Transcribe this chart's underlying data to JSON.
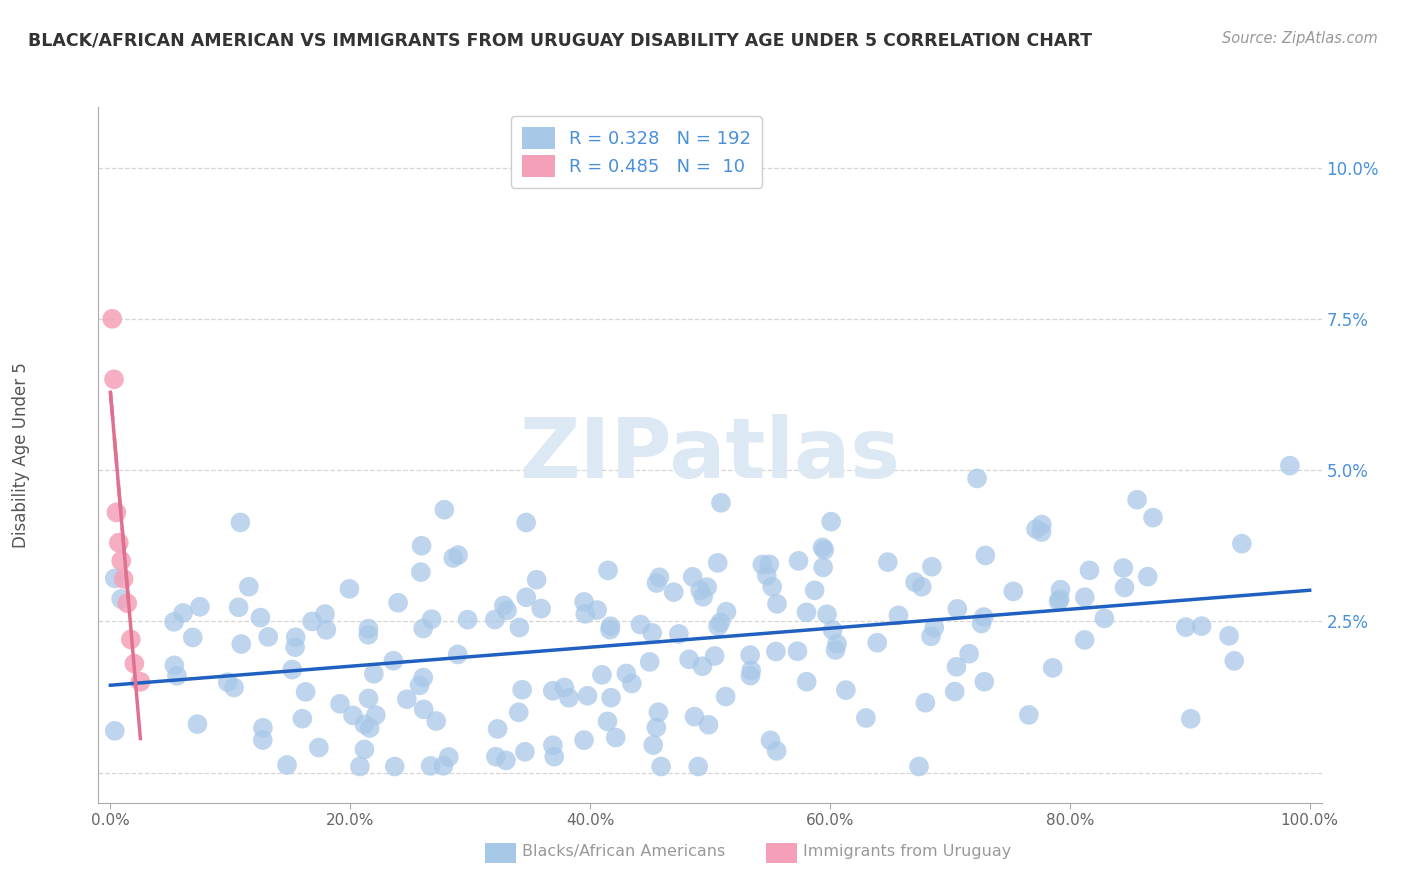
{
  "title": "BLACK/AFRICAN AMERICAN VS IMMIGRANTS FROM URUGUAY DISABILITY AGE UNDER 5 CORRELATION CHART",
  "source": "Source: ZipAtlas.com",
  "ylabel": "Disability Age Under 5",
  "xlim": [
    0,
    100
  ],
  "ylim": [
    0,
    10
  ],
  "blue_R": 0.328,
  "blue_N": 192,
  "pink_R": 0.485,
  "pink_N": 10,
  "blue_color": "#a8c8e8",
  "pink_color": "#f4a0b8",
  "blue_line_color": "#2060c0",
  "pink_line_color": "#e07090",
  "axis_color": "#aaaaaa",
  "grid_color": "#cccccc",
  "title_color": "#333333",
  "source_color": "#999999",
  "tick_color": "#4a90d9",
  "legend_text_color": "#4a90d9",
  "watermark_color": "#dde8f5",
  "bottom_label_color": "#999999"
}
